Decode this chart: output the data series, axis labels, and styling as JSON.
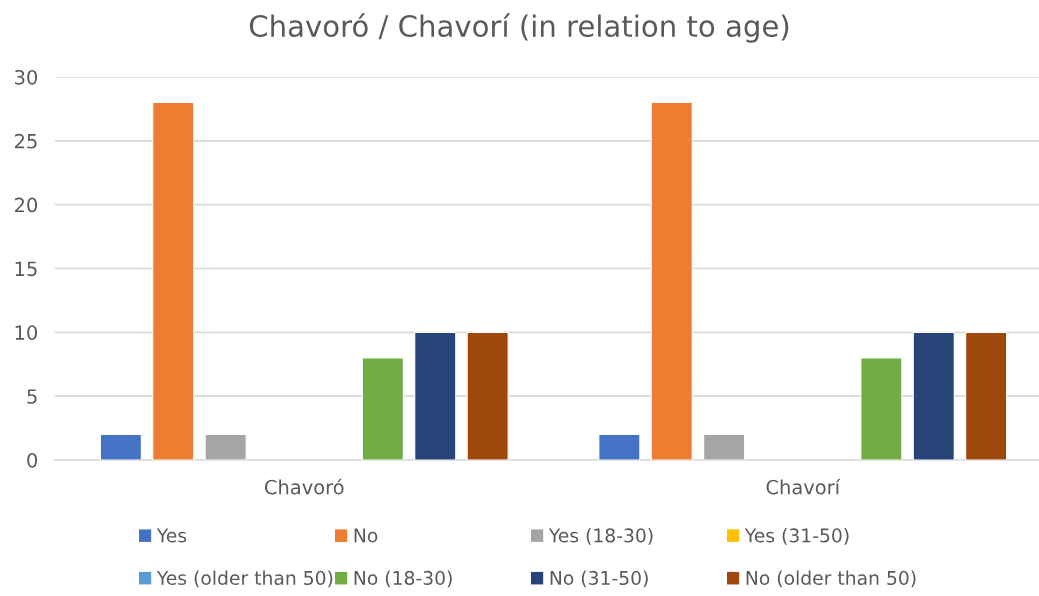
{
  "chart_data": {
    "type": "bar",
    "title": "Chavoró / Chavorí (in relation to age)",
    "categories": [
      "Chavoró",
      "Chavorí"
    ],
    "series": [
      {
        "name": "Yes",
        "color": "#4472c4",
        "values": [
          2,
          2
        ]
      },
      {
        "name": "No",
        "color": "#ed7d31",
        "values": [
          28,
          28
        ]
      },
      {
        "name": "Yes (18-30)",
        "color": "#a5a5a5",
        "values": [
          2,
          2
        ]
      },
      {
        "name": "Yes (31-50)",
        "color": "#ffc000",
        "values": [
          0,
          0
        ]
      },
      {
        "name": "Yes (older than 50)",
        "color": "#5b9bd5",
        "values": [
          0,
          0
        ]
      },
      {
        "name": "No (18-30)",
        "color": "#70ad47",
        "values": [
          8,
          8
        ]
      },
      {
        "name": "No (31-50)",
        "color": "#264478",
        "values": [
          10,
          10
        ]
      },
      {
        "name": "No (older than 50)",
        "color": "#9e480e",
        "values": [
          10,
          10
        ]
      }
    ],
    "ylim": [
      0,
      30
    ],
    "yticks": [
      0,
      5,
      10,
      15,
      20,
      25,
      30
    ],
    "grid": "y",
    "legend": "bottom"
  }
}
